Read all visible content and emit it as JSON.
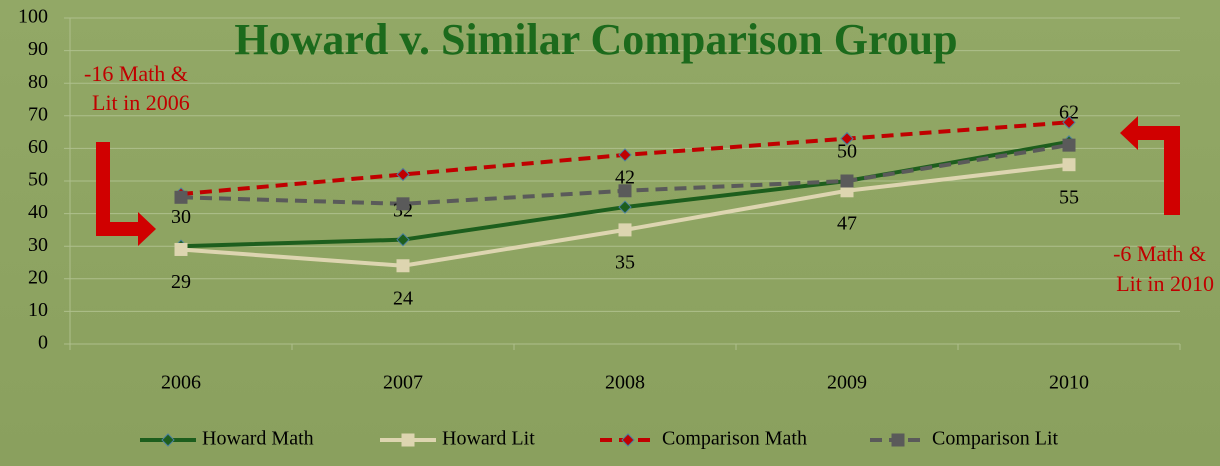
{
  "chart_data": {
    "type": "line",
    "title": "Howard v. Similar Comparison Group",
    "categories": [
      "2006",
      "2007",
      "2008",
      "2009",
      "2010"
    ],
    "series": [
      {
        "name": "Howard Math",
        "color": "#1d5e1d",
        "marker": "diamond",
        "dash": false,
        "show_labels": true,
        "values": [
          30,
          32,
          42,
          50,
          62
        ]
      },
      {
        "name": "Howard Lit",
        "color": "#ddd5b0",
        "marker": "square",
        "dash": false,
        "show_labels": true,
        "values": [
          29,
          24,
          35,
          47,
          55
        ]
      },
      {
        "name": "Comparison Math",
        "color": "#c00000",
        "marker": "diamond",
        "dash": true,
        "show_labels": false,
        "values": [
          46,
          52,
          58,
          63,
          68
        ]
      },
      {
        "name": "Comparison Lit",
        "color": "#5a5a5a",
        "marker": "square",
        "dash": true,
        "show_labels": false,
        "values": [
          45,
          43,
          47,
          50,
          61
        ]
      }
    ],
    "ylim": [
      0,
      100
    ],
    "yticks": [
      0,
      10,
      20,
      30,
      40,
      50,
      60,
      70,
      80,
      90,
      100
    ],
    "grid": true,
    "legend": "bottom",
    "annotations": [
      {
        "lines": [
          "-16 Math &",
          "Lit in 2006"
        ]
      },
      {
        "lines": [
          "-6 Math &",
          "Lit in 2010"
        ]
      }
    ]
  }
}
